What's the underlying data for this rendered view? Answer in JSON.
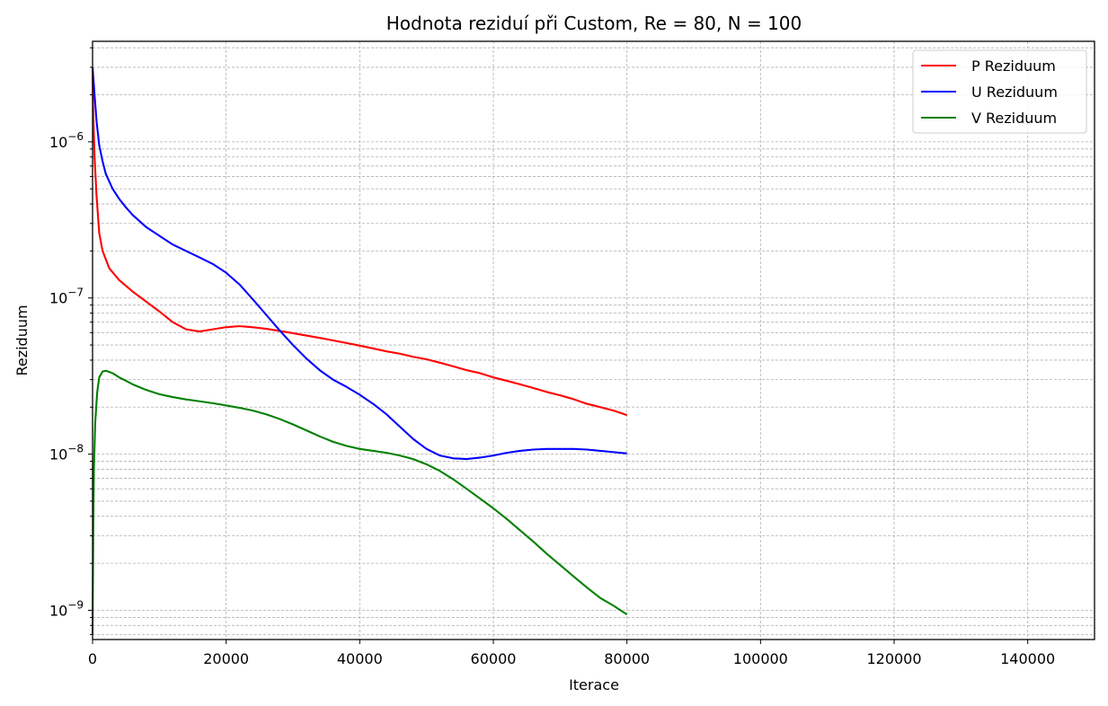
{
  "chart_data": {
    "type": "line",
    "title": "Hodnota reziduí při Custom, Re = 80, N = 100",
    "xlabel": "Iterace",
    "ylabel": "Reziduum",
    "xlim": [
      0,
      150000
    ],
    "ylim": [
      6.5e-10,
      4.4e-06
    ],
    "yscale": "log",
    "grid": true,
    "legend_position": "top-right",
    "x_ticks": [
      0,
      20000,
      40000,
      60000,
      80000,
      100000,
      120000,
      140000
    ],
    "x_tick_labels": [
      "0",
      "20000",
      "40000",
      "60000",
      "80000",
      "100000",
      "120000",
      "140000"
    ],
    "y_ticks": [
      {
        "value": 1e-09,
        "base": "10",
        "exp": "−9"
      },
      {
        "value": 1e-08,
        "base": "10",
        "exp": "−8"
      },
      {
        "value": 1e-07,
        "base": "10",
        "exp": "−7"
      },
      {
        "value": 1e-06,
        "base": "10",
        "exp": "−6"
      }
    ],
    "series": [
      {
        "name": "P Reziduum",
        "color": "#ff0000",
        "points": [
          [
            0,
            3e-06
          ],
          [
            100,
            1.5e-06
          ],
          [
            300,
            8e-07
          ],
          [
            600,
            4.5e-07
          ],
          [
            1000,
            2.6e-07
          ],
          [
            1500,
            2e-07
          ],
          [
            2500,
            1.55e-07
          ],
          [
            4000,
            1.3e-07
          ],
          [
            6000,
            1.1e-07
          ],
          [
            8000,
            9.5e-08
          ],
          [
            10000,
            8.2e-08
          ],
          [
            12000,
            7e-08
          ],
          [
            14000,
            6.3e-08
          ],
          [
            16000,
            6.1e-08
          ],
          [
            18000,
            6.3e-08
          ],
          [
            20000,
            6.5e-08
          ],
          [
            22000,
            6.6e-08
          ],
          [
            24000,
            6.5e-08
          ],
          [
            26000,
            6.35e-08
          ],
          [
            28000,
            6.15e-08
          ],
          [
            30000,
            5.95e-08
          ],
          [
            32000,
            5.75e-08
          ],
          [
            34000,
            5.55e-08
          ],
          [
            36000,
            5.35e-08
          ],
          [
            38000,
            5.15e-08
          ],
          [
            40000,
            4.95e-08
          ],
          [
            42000,
            4.75e-08
          ],
          [
            44000,
            4.55e-08
          ],
          [
            46000,
            4.4e-08
          ],
          [
            48000,
            4.2e-08
          ],
          [
            50000,
            4.05e-08
          ],
          [
            52000,
            3.85e-08
          ],
          [
            54000,
            3.65e-08
          ],
          [
            56000,
            3.45e-08
          ],
          [
            58000,
            3.3e-08
          ],
          [
            60000,
            3.1e-08
          ],
          [
            62000,
            2.95e-08
          ],
          [
            64000,
            2.8e-08
          ],
          [
            66000,
            2.65e-08
          ],
          [
            68000,
            2.5e-08
          ],
          [
            70000,
            2.38e-08
          ],
          [
            72000,
            2.25e-08
          ],
          [
            74000,
            2.1e-08
          ],
          [
            76000,
            2e-08
          ],
          [
            78000,
            1.9e-08
          ],
          [
            80000,
            1.78e-08
          ]
        ]
      },
      {
        "name": "U Reziduum",
        "color": "#0000ff",
        "points": [
          [
            0,
            3e-06
          ],
          [
            300,
            2e-06
          ],
          [
            600,
            1.35e-06
          ],
          [
            1000,
            9.5e-07
          ],
          [
            1500,
            7.5e-07
          ],
          [
            2000,
            6.2e-07
          ],
          [
            3000,
            5e-07
          ],
          [
            4000,
            4.3e-07
          ],
          [
            5000,
            3.8e-07
          ],
          [
            6000,
            3.4e-07
          ],
          [
            8000,
            2.85e-07
          ],
          [
            10000,
            2.5e-07
          ],
          [
            12000,
            2.2e-07
          ],
          [
            14000,
            2e-07
          ],
          [
            16000,
            1.82e-07
          ],
          [
            18000,
            1.65e-07
          ],
          [
            20000,
            1.45e-07
          ],
          [
            22000,
            1.22e-07
          ],
          [
            24000,
            9.8e-08
          ],
          [
            26000,
            7.8e-08
          ],
          [
            28000,
            6.2e-08
          ],
          [
            30000,
            5e-08
          ],
          [
            32000,
            4.1e-08
          ],
          [
            34000,
            3.45e-08
          ],
          [
            36000,
            3e-08
          ],
          [
            38000,
            2.7e-08
          ],
          [
            40000,
            2.4e-08
          ],
          [
            42000,
            2.1e-08
          ],
          [
            44000,
            1.8e-08
          ],
          [
            46000,
            1.5e-08
          ],
          [
            48000,
            1.25e-08
          ],
          [
            50000,
            1.08e-08
          ],
          [
            52000,
            9.8e-09
          ],
          [
            54000,
            9.4e-09
          ],
          [
            56000,
            9.3e-09
          ],
          [
            58000,
            9.5e-09
          ],
          [
            60000,
            9.8e-09
          ],
          [
            62000,
            1.02e-08
          ],
          [
            64000,
            1.05e-08
          ],
          [
            66000,
            1.07e-08
          ],
          [
            68000,
            1.08e-08
          ],
          [
            70000,
            1.08e-08
          ],
          [
            72000,
            1.08e-08
          ],
          [
            74000,
            1.07e-08
          ],
          [
            76000,
            1.05e-08
          ],
          [
            78000,
            1.03e-08
          ],
          [
            80000,
            1.01e-08
          ]
        ]
      },
      {
        "name": "V Reziduum",
        "color": "#008000",
        "points": [
          [
            0,
            7e-10
          ],
          [
            100,
            3e-09
          ],
          [
            200,
            8e-09
          ],
          [
            400,
            1.6e-08
          ],
          [
            700,
            2.5e-08
          ],
          [
            1000,
            3.1e-08
          ],
          [
            1500,
            3.38e-08
          ],
          [
            2000,
            3.42e-08
          ],
          [
            3000,
            3.3e-08
          ],
          [
            4000,
            3.1e-08
          ],
          [
            5000,
            2.95e-08
          ],
          [
            6000,
            2.8e-08
          ],
          [
            8000,
            2.58e-08
          ],
          [
            10000,
            2.42e-08
          ],
          [
            12000,
            2.32e-08
          ],
          [
            14000,
            2.24e-08
          ],
          [
            16000,
            2.18e-08
          ],
          [
            18000,
            2.12e-08
          ],
          [
            20000,
            2.05e-08
          ],
          [
            22000,
            1.98e-08
          ],
          [
            24000,
            1.9e-08
          ],
          [
            26000,
            1.8e-08
          ],
          [
            28000,
            1.68e-08
          ],
          [
            30000,
            1.55e-08
          ],
          [
            32000,
            1.42e-08
          ],
          [
            34000,
            1.3e-08
          ],
          [
            36000,
            1.2e-08
          ],
          [
            38000,
            1.13e-08
          ],
          [
            40000,
            1.08e-08
          ],
          [
            42000,
            1.05e-08
          ],
          [
            44000,
            1.02e-08
          ],
          [
            46000,
            9.8e-09
          ],
          [
            48000,
            9.3e-09
          ],
          [
            50000,
            8.6e-09
          ],
          [
            52000,
            7.8e-09
          ],
          [
            54000,
            6.9e-09
          ],
          [
            56000,
            6e-09
          ],
          [
            58000,
            5.2e-09
          ],
          [
            60000,
            4.5e-09
          ],
          [
            62000,
            3.85e-09
          ],
          [
            64000,
            3.25e-09
          ],
          [
            66000,
            2.75e-09
          ],
          [
            68000,
            2.3e-09
          ],
          [
            70000,
            1.95e-09
          ],
          [
            72000,
            1.65e-09
          ],
          [
            74000,
            1.4e-09
          ],
          [
            76000,
            1.2e-09
          ],
          [
            78000,
            1.07e-09
          ],
          [
            80000,
            9.4e-10
          ]
        ]
      }
    ]
  }
}
